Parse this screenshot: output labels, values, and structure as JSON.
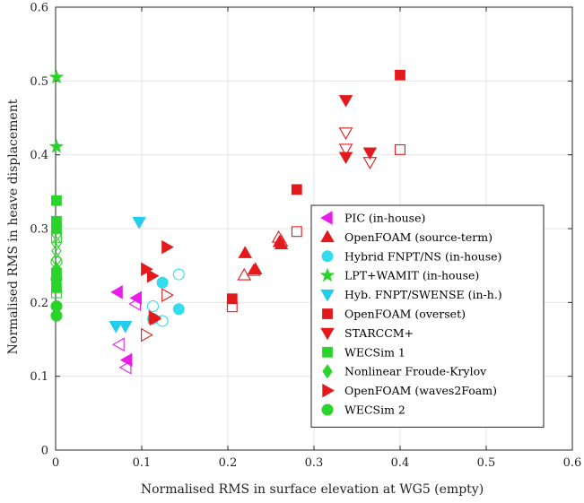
{
  "chart_data": {
    "type": "scatter",
    "xlabel": "Normalised RMS in surface elevation at WG5 (empty)",
    "ylabel": "Normalised RMS in heave displacement",
    "xlim": [
      0,
      0.6
    ],
    "ylim": [
      0,
      0.6
    ],
    "x_ticks": [
      "0",
      "0.1",
      "0.2",
      "0.3",
      "0.4",
      "0.5",
      "0.6"
    ],
    "y_ticks": [
      "0",
      "0.1",
      "0.2",
      "0.3",
      "0.4",
      "0.5",
      "0.6"
    ],
    "x_tick_values": [
      0,
      0.1,
      0.2,
      0.3,
      0.4,
      0.5,
      0.6
    ],
    "y_tick_values": [
      0,
      0.1,
      0.2,
      0.3,
      0.4,
      0.5,
      0.6
    ],
    "grid": true,
    "legend_position": "bottom-right",
    "series": [
      {
        "name": "PIC (in-house)",
        "marker": "triangle-left",
        "color": "#e81ee8",
        "filled": [
          [
            0.072,
            0.214
          ],
          [
            0.083,
            0.122
          ],
          [
            0.094,
            0.206
          ]
        ],
        "open": [
          [
            0.074,
            0.143
          ],
          [
            0.082,
            0.112
          ],
          [
            0.093,
            0.198
          ]
        ]
      },
      {
        "name": "OpenFOAM (source-term)",
        "marker": "triangle-up",
        "color": "#e31a1c",
        "filled": [
          [
            0.22,
            0.267
          ],
          [
            0.232,
            0.245
          ],
          [
            0.26,
            0.282
          ],
          [
            0.262,
            0.279
          ]
        ],
        "open": [
          [
            0.219,
            0.237
          ],
          [
            0.23,
            0.243
          ],
          [
            0.259,
            0.288
          ],
          [
            0.262,
            0.283
          ]
        ]
      },
      {
        "name": "Hybrid FNPT/NS (in-house)",
        "marker": "circle",
        "color": "#33ddee",
        "filled": [
          [
            0.113,
            0.178
          ],
          [
            0.124,
            0.227
          ],
          [
            0.143,
            0.191
          ]
        ],
        "open": [
          [
            0.113,
            0.195
          ],
          [
            0.124,
            0.175
          ],
          [
            0.143,
            0.238
          ]
        ]
      },
      {
        "name": "LPT+WAMIT (in-house)",
        "marker": "star",
        "color": "#2bd42b",
        "filled": [
          [
            0.001,
            0.505
          ],
          [
            0.001,
            0.411
          ]
        ],
        "open": []
      },
      {
        "name": "Hyb. FNPT/SWENSE (in-h.)",
        "marker": "triangle-down",
        "color": "#22ccee",
        "filled": [
          [
            0.07,
            0.168
          ],
          [
            0.081,
            0.168
          ],
          [
            0.097,
            0.309
          ]
        ],
        "open": []
      },
      {
        "name": "OpenFOAM (overset)",
        "marker": "square",
        "color": "#e31a1c",
        "filled": [
          [
            0.205,
            0.205
          ],
          [
            0.28,
            0.353
          ],
          [
            0.4,
            0.508
          ]
        ],
        "open": [
          [
            0.205,
            0.194
          ],
          [
            0.28,
            0.296
          ],
          [
            0.4,
            0.407
          ]
        ]
      },
      {
        "name": "STARCCM+",
        "marker": "triangle-down",
        "color": "#e31a1c",
        "filled": [
          [
            0.337,
            0.474
          ],
          [
            0.337,
            0.397
          ],
          [
            0.365,
            0.403
          ]
        ],
        "open": [
          [
            0.337,
            0.43
          ],
          [
            0.337,
            0.408
          ],
          [
            0.365,
            0.39
          ]
        ]
      },
      {
        "name": "WECSim 1",
        "marker": "square",
        "color": "#2bd42b",
        "filled": [
          [
            0.001,
            0.338
          ],
          [
            0.001,
            0.31
          ],
          [
            0.001,
            0.3
          ],
          [
            0.001,
            0.24
          ],
          [
            0.001,
            0.22
          ]
        ],
        "open": [
          [
            0.001,
            0.288
          ],
          [
            0.001,
            0.213
          ]
        ]
      },
      {
        "name": "Nonlinear Froude-Krylov",
        "marker": "diamond",
        "color": "#2bd42b",
        "filled": [
          [
            0.001,
            0.245
          ],
          [
            0.001,
            0.23
          ]
        ],
        "open": [
          [
            0.001,
            0.292
          ],
          [
            0.001,
            0.28
          ],
          [
            0.001,
            0.27
          ],
          [
            0.001,
            0.258
          ]
        ]
      },
      {
        "name": "OpenFOAM (waves2Foam)",
        "marker": "triangle-right",
        "color": "#e31a1c",
        "filled": [
          [
            0.105,
            0.245
          ],
          [
            0.112,
            0.236
          ],
          [
            0.115,
            0.178
          ],
          [
            0.129,
            0.275
          ]
        ],
        "open": [
          [
            0.105,
            0.156
          ],
          [
            0.114,
            0.18
          ],
          [
            0.129,
            0.21
          ]
        ]
      },
      {
        "name": "WECSim 2",
        "marker": "circle",
        "color": "#2bd42b",
        "filled": [
          [
            0.001,
            0.232
          ],
          [
            0.001,
            0.195
          ],
          [
            0.001,
            0.182
          ]
        ],
        "open": [
          [
            0.001,
            0.255
          ]
        ]
      }
    ]
  }
}
